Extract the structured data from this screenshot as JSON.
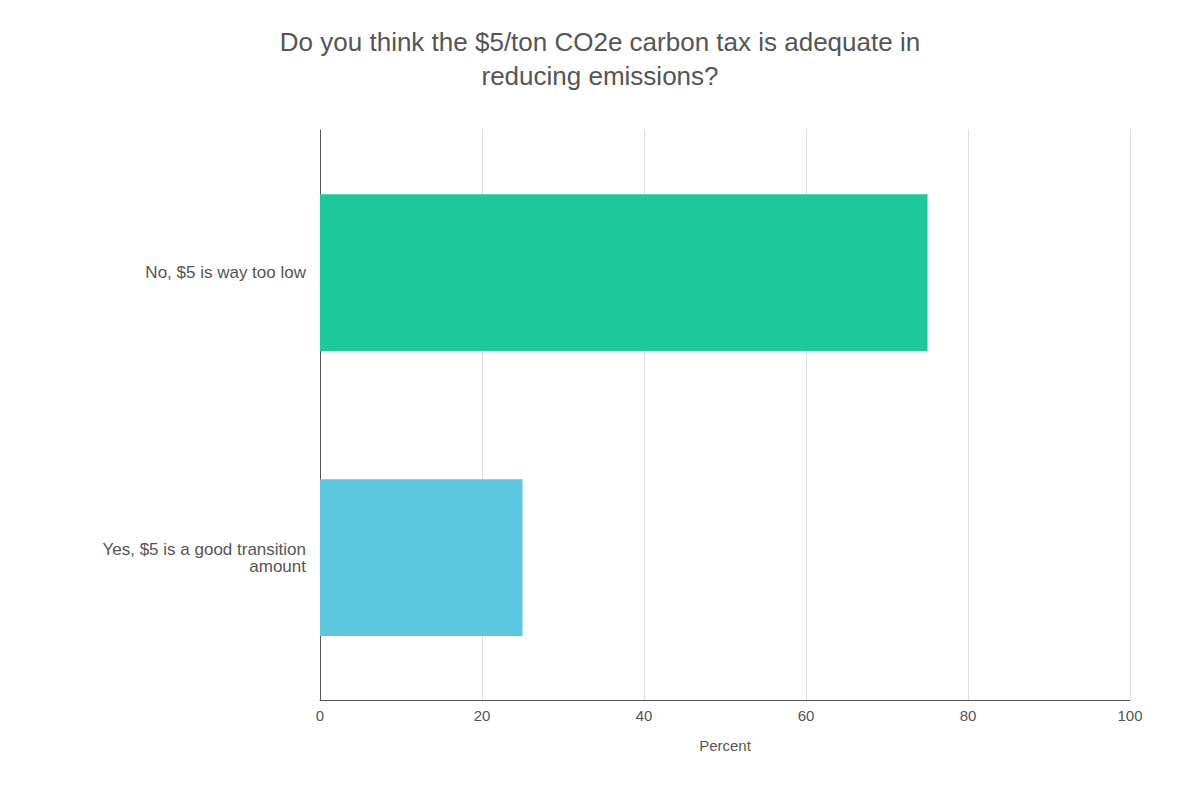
{
  "chart_data": {
    "type": "bar",
    "orientation": "horizontal",
    "title": "Do you think the $5/ton CO2e carbon tax is adequate in\nreducing emissions?",
    "categories": [
      "No, $5 is way too low",
      "Yes, $5 is a good transition\namount"
    ],
    "values": [
      75,
      25
    ],
    "colors": [
      "#1DC99A",
      "#5BC8E0"
    ],
    "xlabel": "Percent",
    "xlim": [
      0,
      100
    ],
    "xticks": [
      0,
      20,
      40,
      60,
      80,
      100
    ],
    "grid": true
  }
}
